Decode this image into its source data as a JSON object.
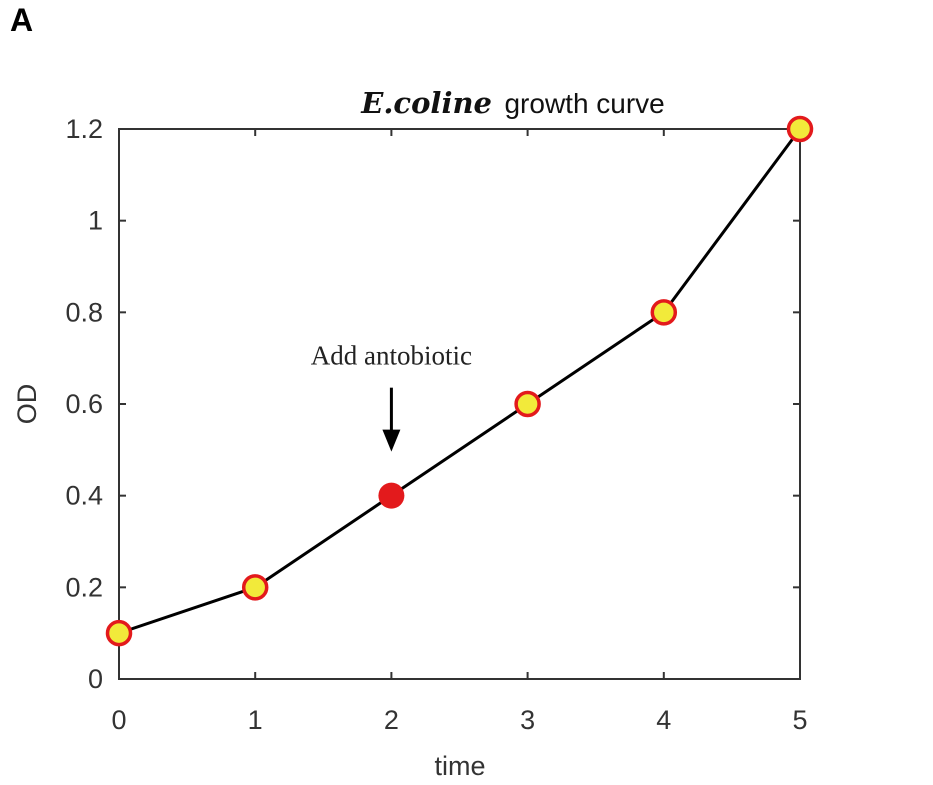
{
  "panel_label": "A",
  "chart_data": {
    "type": "line",
    "title_prefix": "E.coline",
    "title": "growth curve",
    "xlabel": "time",
    "ylabel": "OD",
    "xlim": [
      0,
      5
    ],
    "ylim": [
      0,
      1.2
    ],
    "xticks": [
      "0",
      "1",
      "2",
      "3",
      "4",
      "5"
    ],
    "yticks": [
      "0",
      "0.2",
      "0.4",
      "0.6",
      "0.8",
      "1",
      "1.2"
    ],
    "x": [
      0,
      1,
      2,
      3,
      4,
      5
    ],
    "y": [
      0.1,
      0.2,
      0.4,
      0.6,
      0.8,
      1.2
    ],
    "highlight_index": 2,
    "annotation": {
      "text": "Add antobiotic",
      "x": 2,
      "y": 0.4
    },
    "grid": false,
    "colors": {
      "line": "#000000",
      "marker_fill": "#f2ea3a",
      "marker_edge": "#e31a1c",
      "highlight": "#e31a1c",
      "axis": "#333333"
    }
  }
}
